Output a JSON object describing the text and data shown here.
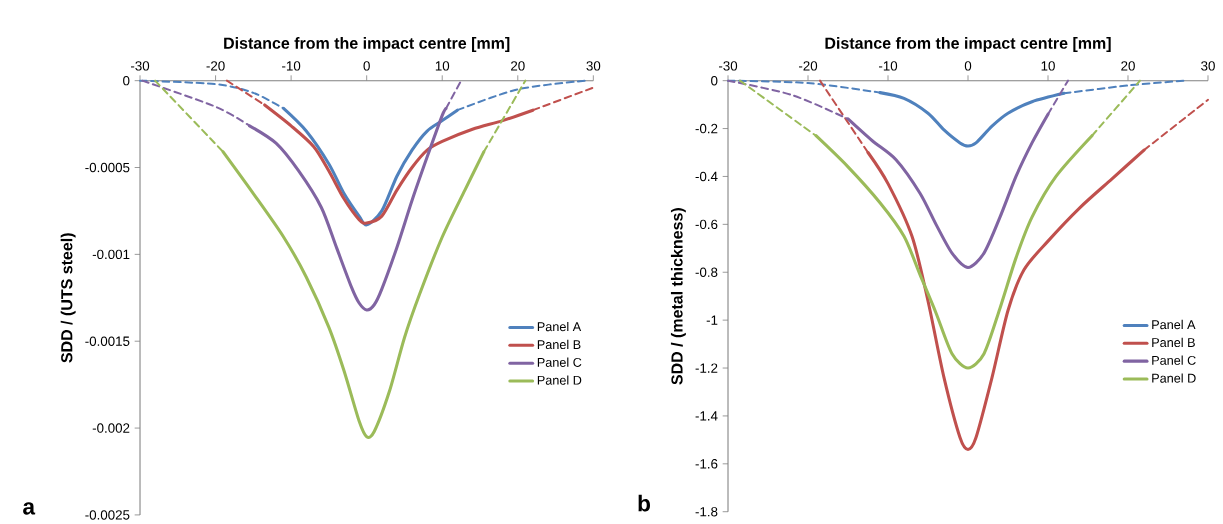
{
  "chart_data": [
    {
      "type": "line",
      "xlabel": "Distance from the impact centre [mm]",
      "ylabel": "SDD / (UTS steel)",
      "annotations": [
        "a"
      ],
      "xlim": [
        -30,
        30
      ],
      "xticks": [
        -30,
        -20,
        -10,
        0,
        10,
        20,
        30
      ],
      "ylim": [
        -0.0025,
        0
      ],
      "yticks": [
        0,
        -0.0005,
        -0.001,
        -0.0015,
        -0.002,
        -0.0025
      ],
      "legend": "right",
      "series": [
        {
          "name": "Panel A",
          "color": "#4f81bd",
          "line_style": "solid",
          "x": [
            -11,
            -8,
            -5,
            -3,
            -1,
            0,
            2,
            4,
            6,
            8,
            10,
            12
          ],
          "values": [
            -0.00016,
            -0.00029,
            -0.00048,
            -0.00065,
            -0.00078,
            -0.00083,
            -0.00075,
            -0.00055,
            -0.0004,
            -0.00029,
            -0.00023,
            -0.00017
          ]
        },
        {
          "name": "Panel B",
          "color": "#c0504d",
          "line_style": "solid",
          "x": [
            -13.5,
            -10,
            -7,
            -5,
            -3,
            -1,
            0,
            2,
            4,
            6,
            8,
            10,
            14,
            18,
            22
          ],
          "values": [
            -0.00014,
            -0.00026,
            -0.00038,
            -0.00052,
            -0.00068,
            -0.0008,
            -0.00082,
            -0.00078,
            -0.00063,
            -0.0005,
            -0.0004,
            -0.00035,
            -0.00028,
            -0.00023,
            -0.00017
          ]
        },
        {
          "name": "Panel C",
          "color": "#8064a2",
          "line_style": "solid",
          "x": [
            -15.5,
            -12,
            -9,
            -6,
            -4,
            -2,
            -1,
            0,
            1,
            2,
            4,
            6,
            8,
            10,
            10.5
          ],
          "values": [
            -0.00026,
            -0.00036,
            -0.00052,
            -0.00073,
            -0.00096,
            -0.00119,
            -0.00128,
            -0.00132,
            -0.00129,
            -0.0012,
            -0.00096,
            -0.00069,
            -0.00044,
            -0.0002,
            -0.00016
          ]
        },
        {
          "name": "Panel D",
          "color": "#9bbb59",
          "line_style": "solid",
          "x": [
            -19,
            -15,
            -11,
            -8,
            -5,
            -3,
            -1,
            0,
            1,
            3,
            5,
            7,
            10,
            13,
            15.5
          ],
          "values": [
            -0.00041,
            -0.00065,
            -0.0009,
            -0.00113,
            -0.00142,
            -0.00167,
            -0.00196,
            -0.00205,
            -0.00202,
            -0.00179,
            -0.00148,
            -0.00123,
            -0.0009,
            -0.00063,
            -0.00041
          ]
        },
        {
          "color": "#4f81bd",
          "line_style": "dashed",
          "x": [
            -30,
            -20,
            -15,
            -11,
            null,
            12,
            20,
            29
          ],
          "values": [
            0,
            -2e-05,
            -7e-05,
            -0.00016,
            null,
            -0.00017,
            -5e-05,
            0
          ]
        },
        {
          "color": "#c0504d",
          "line_style": "dashed",
          "x": [
            -18.5,
            -13.5,
            null,
            22,
            30
          ],
          "values": [
            0,
            -0.00014,
            null,
            -0.00017,
            -4e-05
          ]
        },
        {
          "color": "#8064a2",
          "line_style": "dashed",
          "x": [
            -29.7,
            -20,
            -15.5,
            null,
            10.5,
            12.5
          ],
          "values": [
            0,
            -0.00015,
            -0.00026,
            null,
            -0.00016,
            0
          ]
        },
        {
          "color": "#9bbb59",
          "line_style": "dashed",
          "x": [
            -28,
            -19,
            null,
            15.5,
            21
          ],
          "values": [
            0,
            -0.00041,
            null,
            -0.00041,
            0
          ]
        }
      ]
    },
    {
      "type": "line",
      "xlabel": "Distance from the impact centre [mm]",
      "ylabel": "SDD / (metal thickness)",
      "annotations": [
        "b"
      ],
      "xlim": [
        -30,
        30
      ],
      "xticks": [
        -30,
        -20,
        -10,
        0,
        10,
        20,
        30
      ],
      "ylim": [
        -1.8,
        0
      ],
      "yticks": [
        0,
        -0.2,
        -0.4,
        -0.6,
        -0.8,
        -1,
        -1.2,
        -1.4,
        -1.6,
        -1.8
      ],
      "legend": "right",
      "series": [
        {
          "name": "Panel A",
          "color": "#4f81bd",
          "line_style": "solid",
          "x": [
            -11,
            -8,
            -5,
            -3,
            -1,
            0,
            1,
            3,
            5,
            8,
            12
          ],
          "values": [
            -0.05,
            -0.074,
            -0.136,
            -0.206,
            -0.26,
            -0.273,
            -0.26,
            -0.19,
            -0.136,
            -0.088,
            -0.053
          ]
        },
        {
          "name": "Panel B",
          "color": "#c0504d",
          "line_style": "solid",
          "x": [
            -12.5,
            -10,
            -7,
            -5,
            -3,
            -1,
            0,
            1,
            3,
            5,
            7,
            10,
            14,
            18,
            22
          ],
          "values": [
            -0.3,
            -0.43,
            -0.65,
            -0.92,
            -1.24,
            -1.49,
            -1.54,
            -1.49,
            -1.24,
            -0.96,
            -0.79,
            -0.67,
            -0.53,
            -0.41,
            -0.29
          ]
        },
        {
          "name": "Panel C",
          "color": "#8064a2",
          "line_style": "solid",
          "x": [
            -15,
            -12,
            -9,
            -6,
            -4,
            -2,
            0,
            2,
            4,
            6,
            8,
            10
          ],
          "values": [
            -0.16,
            -0.25,
            -0.33,
            -0.47,
            -0.6,
            -0.72,
            -0.78,
            -0.72,
            -0.57,
            -0.4,
            -0.26,
            -0.14
          ]
        },
        {
          "name": "Panel D",
          "color": "#9bbb59",
          "line_style": "solid",
          "x": [
            -19,
            -15,
            -11,
            -8,
            -6,
            -4,
            -2,
            0,
            2,
            4,
            6,
            8,
            11,
            15.5
          ],
          "values": [
            -0.23,
            -0.36,
            -0.51,
            -0.65,
            -0.81,
            -0.97,
            -1.14,
            -1.2,
            -1.14,
            -0.95,
            -0.74,
            -0.57,
            -0.4,
            -0.23
          ]
        },
        {
          "color": "#4f81bd",
          "line_style": "dashed",
          "x": [
            -30,
            -20,
            -11,
            null,
            12,
            20,
            27
          ],
          "values": [
            0,
            -0.01,
            -0.05,
            null,
            -0.053,
            -0.02,
            0
          ]
        },
        {
          "color": "#c0504d",
          "line_style": "dashed",
          "x": [
            -18.5,
            -12.5,
            null,
            22,
            30
          ],
          "values": [
            0,
            -0.3,
            null,
            -0.29,
            -0.08
          ]
        },
        {
          "color": "#8064a2",
          "line_style": "dashed",
          "x": [
            -30,
            -22,
            -15,
            null,
            10,
            12.5
          ],
          "values": [
            0,
            -0.06,
            -0.16,
            null,
            -0.14,
            0
          ]
        },
        {
          "color": "#9bbb59",
          "line_style": "dashed",
          "x": [
            -28.5,
            -19,
            null,
            15.5,
            21.5
          ],
          "values": [
            0,
            -0.23,
            null,
            -0.23,
            0
          ]
        }
      ]
    }
  ]
}
